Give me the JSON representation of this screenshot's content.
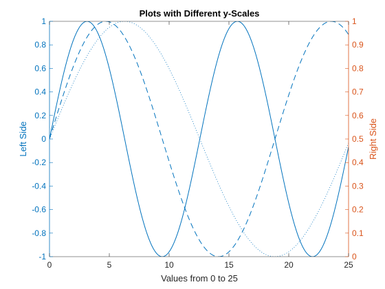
{
  "chart_data": {
    "type": "line",
    "title": "Plots with Different y-Scales",
    "xlabel": "Values from 0 to 25",
    "ylabel_left": "Left Side",
    "ylabel_right": "Right Side",
    "xlim": [
      0,
      25
    ],
    "ylim_left": [
      -1,
      1
    ],
    "ylim_right": [
      0,
      1
    ],
    "x_ticks": [
      0,
      5,
      10,
      15,
      20,
      25
    ],
    "y_left_ticks": [
      -1,
      -0.8,
      -0.6,
      -0.4,
      -0.2,
      0,
      0.2,
      0.4,
      0.6,
      0.8,
      1
    ],
    "y_right_ticks": [
      0,
      0.1,
      0.2,
      0.3,
      0.4,
      0.5,
      0.6,
      0.7,
      0.8,
      0.9,
      1
    ],
    "grid": false,
    "colors": {
      "left_axis": "#0072BD",
      "right_axis": "#D95319",
      "frame": "#262626"
    },
    "series": [
      {
        "axis": "left",
        "style": "solid",
        "function": "sin(x/2)",
        "period": 12.566
      },
      {
        "axis": "left",
        "style": "dashed",
        "function": "sin(x/3)",
        "period": 18.85
      },
      {
        "axis": "left",
        "style": "dotted",
        "function": "sin(x/4)",
        "period": 25.13
      }
    ]
  }
}
